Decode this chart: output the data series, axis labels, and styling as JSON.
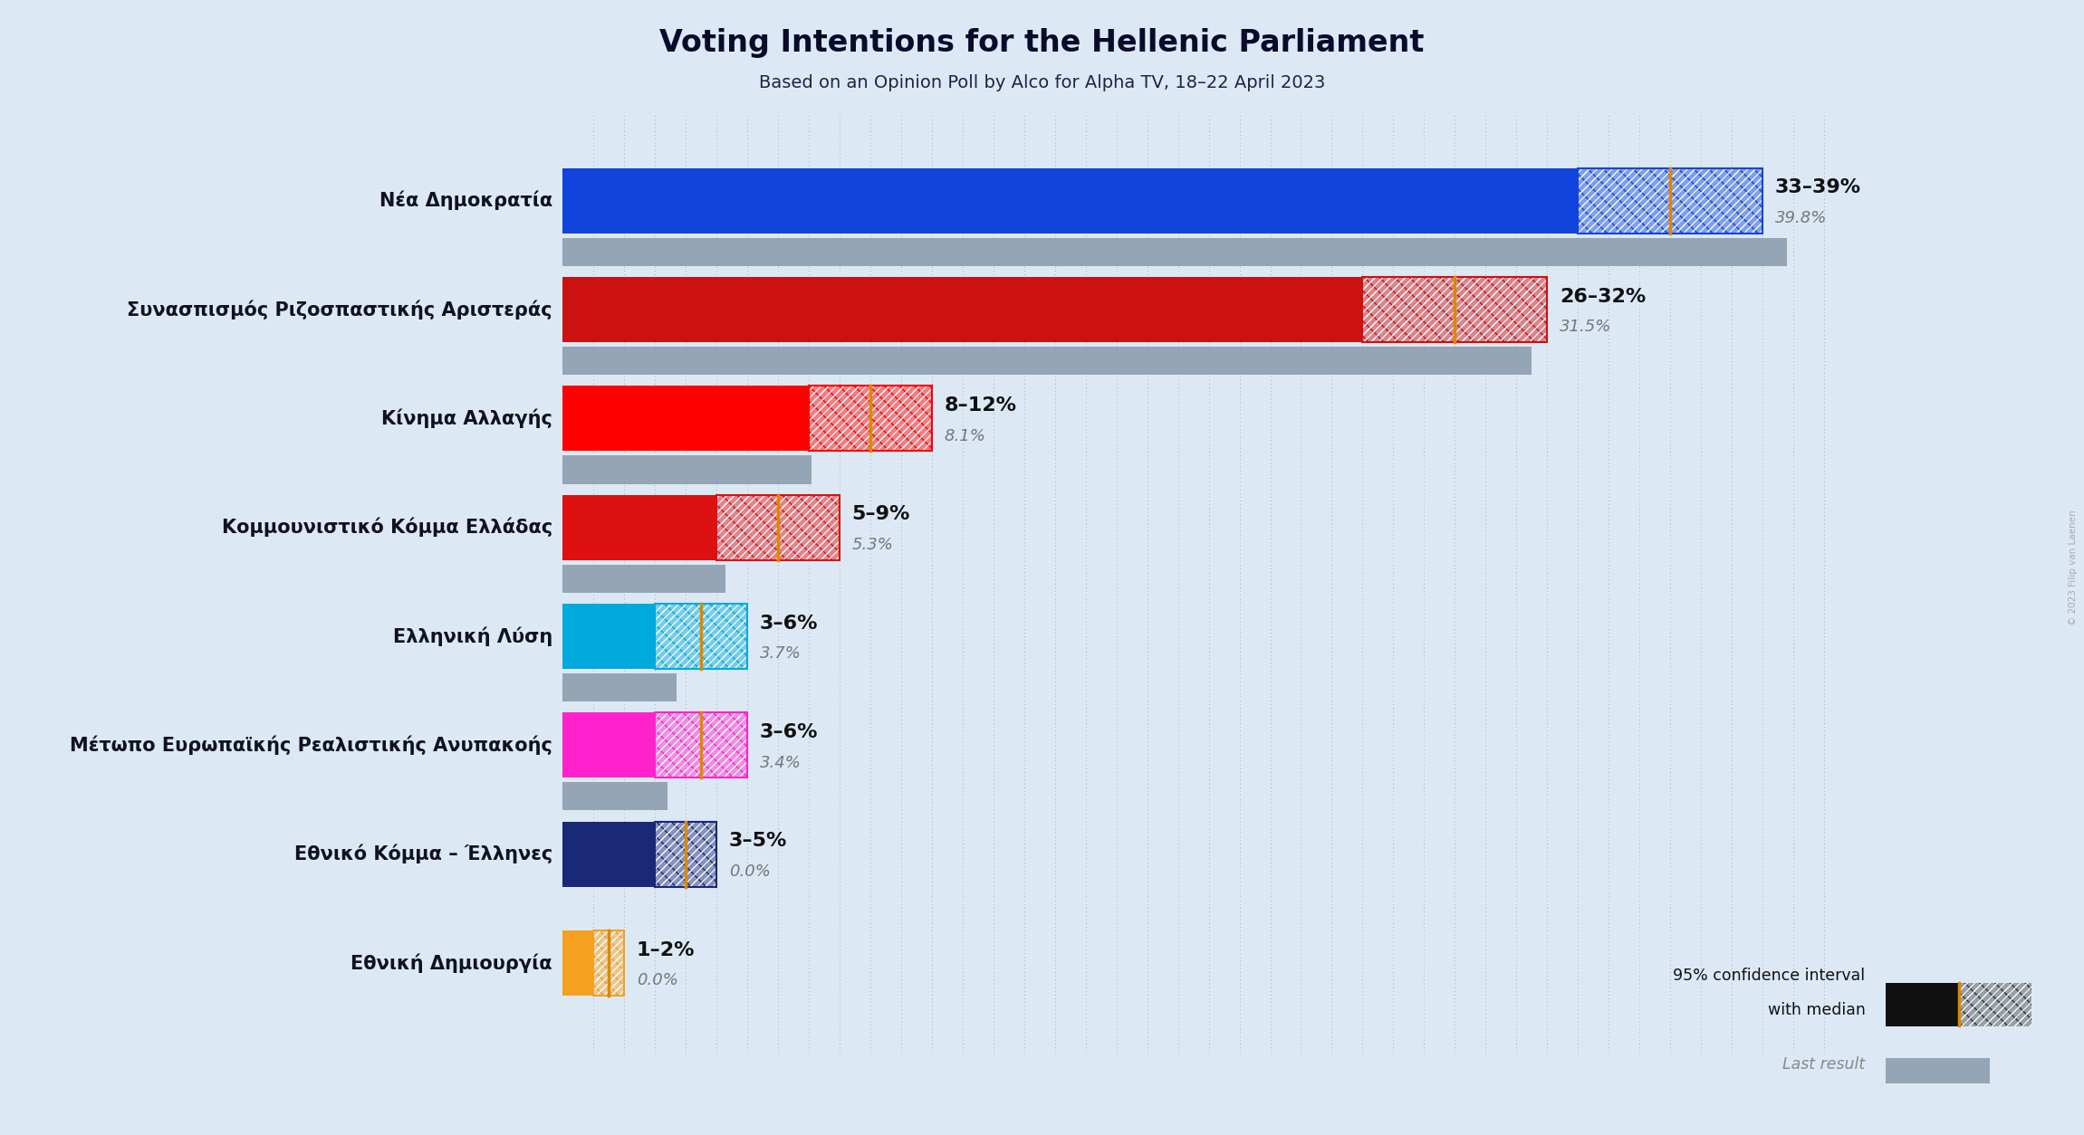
{
  "title": "Voting Intentions for the Hellenic Parliament",
  "subtitle": "Based on an Opinion Poll by Alco for Alpha TV, 18–22 April 2023",
  "bg": "#dce9f5",
  "parties": [
    "Nέα Δημοκρατία",
    "Συνασπισμός Ριζοσπαστικής Αριστεράς",
    "Κίνημα Αλλαγής",
    "Κομμουνιστικό Κόμμα Ελλάδας",
    "Ελληνική Λύση",
    "Μέτωπο Ευρωπαϊκής Ρεαλιστικής Ανυπακοής",
    "Εθνικό Κόμμα – Έλληνες",
    "Εθνική Δημιουργία"
  ],
  "colors": [
    "#1144dd",
    "#cc1111",
    "#ff0000",
    "#dd1111",
    "#00aadd",
    "#ff22cc",
    "#1a2878",
    "#f5a020"
  ],
  "ci_low": [
    33,
    26,
    8,
    5,
    3,
    3,
    3,
    1
  ],
  "ci_high": [
    39,
    32,
    12,
    9,
    6,
    6,
    5,
    2
  ],
  "last_result": [
    39.8,
    31.5,
    8.1,
    5.3,
    3.7,
    3.4,
    0.0,
    0.0
  ],
  "ci_labels": [
    "33–39%",
    "26–32%",
    "8–12%",
    "5–9%",
    "3–6%",
    "3–6%",
    "3–5%",
    "1–2%"
  ],
  "last_labels": [
    "39.8%",
    "31.5%",
    "8.1%",
    "5.3%",
    "3.7%",
    "3.4%",
    "0.0%",
    "0.0%"
  ],
  "xlim": 42,
  "copyright": "© 2023 Filip van Laenen"
}
